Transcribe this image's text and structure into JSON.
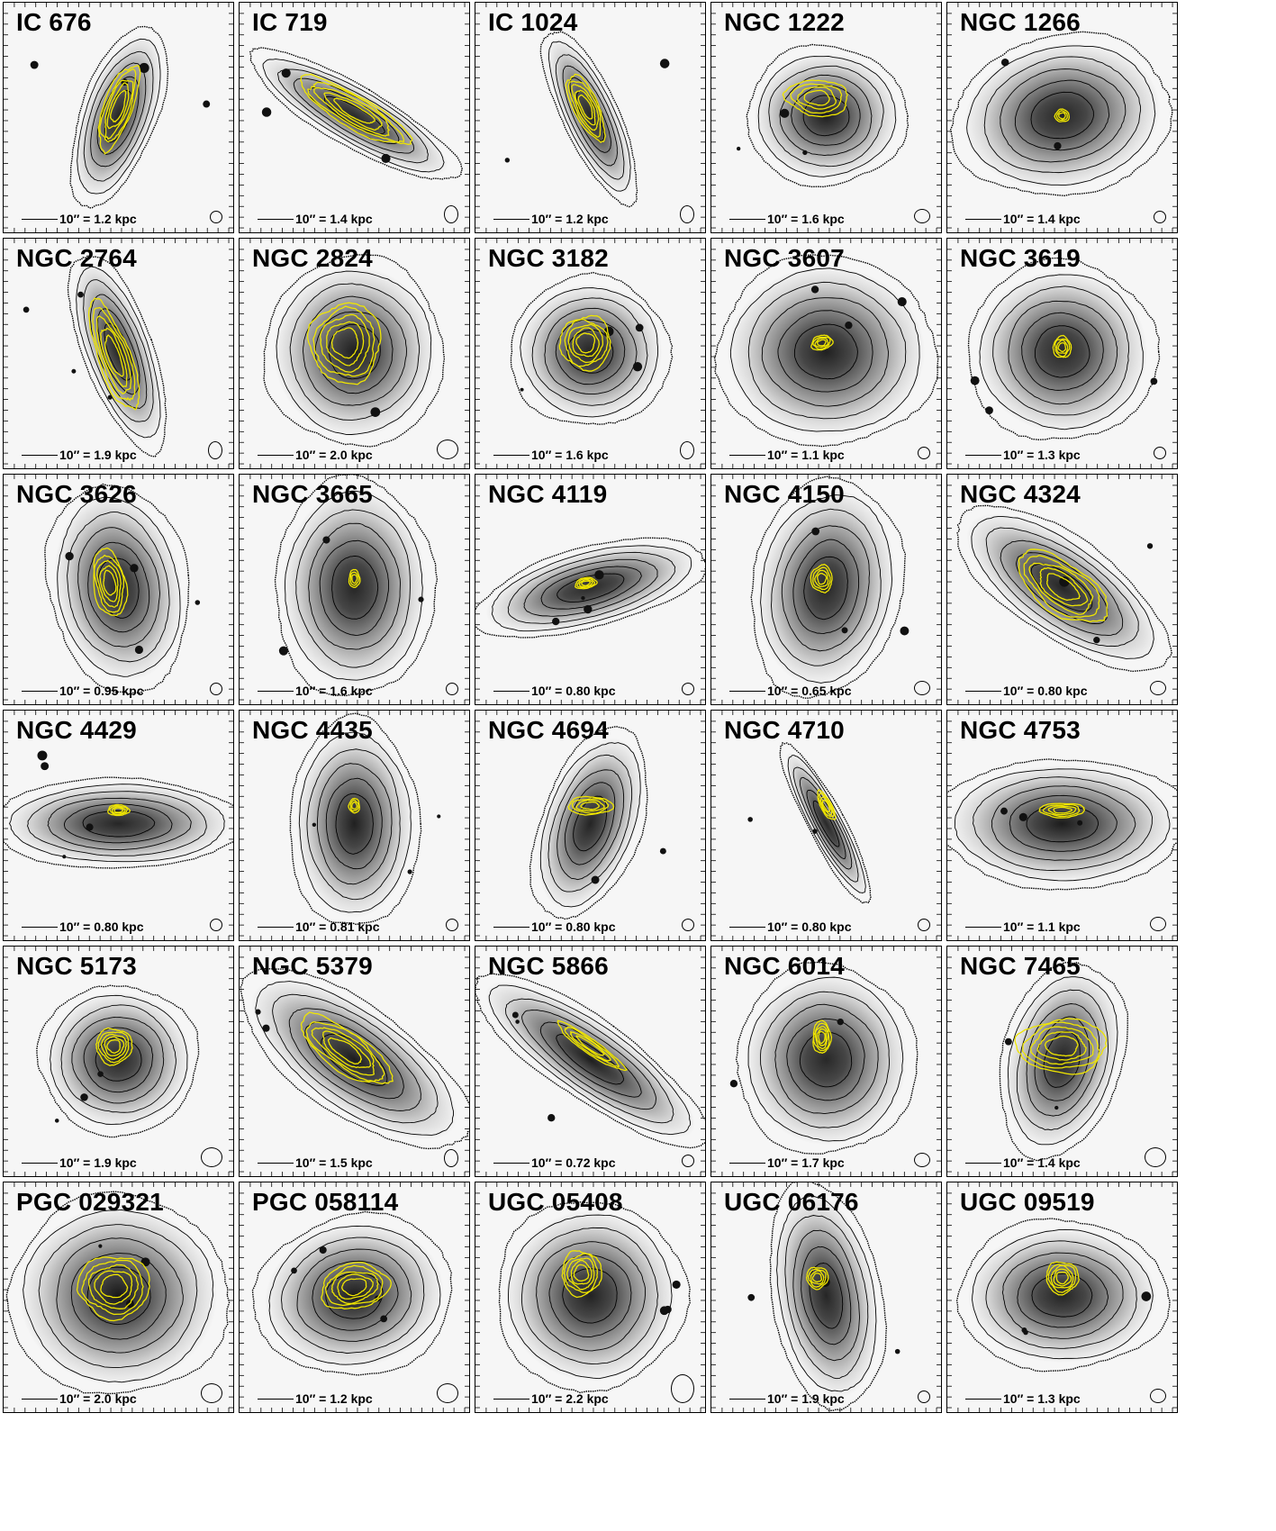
{
  "panels": [
    {
      "name": "IC 676",
      "scale": "10″ = 1.2 kpc",
      "galaxy": {
        "rx": 38,
        "ry": 95,
        "angle": 20,
        "dens": 0.55
      },
      "gas": {
        "rx": 16,
        "ry": 50,
        "angle": 20,
        "dx": 0,
        "dy": -10,
        "n": 5
      },
      "beam": "small"
    },
    {
      "name": "IC 719",
      "scale": "10″ = 1.4 kpc",
      "galaxy": {
        "rx": 30,
        "ry": 120,
        "angle": -60,
        "dens": 0.45
      },
      "gas": {
        "rx": 18,
        "ry": 70,
        "angle": -60,
        "dx": 0,
        "dy": -5,
        "n": 5
      },
      "beam": "tall"
    },
    {
      "name": "IC 1024",
      "scale": "10″ = 1.2 kpc",
      "galaxy": {
        "rx": 28,
        "ry": 95,
        "angle": -25,
        "dens": 0.55
      },
      "gas": {
        "rx": 14,
        "ry": 40,
        "angle": -25,
        "dx": -5,
        "dy": -10,
        "n": 5
      },
      "beam": "tall"
    },
    {
      "name": "NGC 1222",
      "scale": "10″ = 1.6 kpc",
      "galaxy": {
        "rx": 80,
        "ry": 70,
        "angle": 0,
        "dens": 0.8
      },
      "gas": {
        "rx": 35,
        "ry": 20,
        "angle": 5,
        "dx": -10,
        "dy": -20,
        "n": 4
      },
      "beam": "med"
    },
    {
      "name": "NGC 1266",
      "scale": "10″ = 1.4 kpc",
      "galaxy": {
        "rx": 110,
        "ry": 80,
        "angle": -10,
        "dens": 0.55
      },
      "gas": {
        "rx": 8,
        "ry": 7,
        "angle": 0,
        "dx": 0,
        "dy": 0,
        "n": 3
      },
      "beam": "small"
    },
    {
      "name": "NGC 2764",
      "scale": "10″ = 1.9 kpc",
      "galaxy": {
        "rx": 35,
        "ry": 105,
        "angle": -20,
        "dens": 0.6
      },
      "gas": {
        "rx": 18,
        "ry": 65,
        "angle": -20,
        "dx": -5,
        "dy": 5,
        "n": 5
      },
      "beam": "tall"
    },
    {
      "name": "NGC 2824",
      "scale": "10″ = 2.0 kpc",
      "galaxy": {
        "rx": 90,
        "ry": 95,
        "angle": 0,
        "dens": 0.75
      },
      "gas": {
        "rx": 40,
        "ry": 45,
        "angle": 0,
        "dx": -10,
        "dy": -10,
        "n": 5
      },
      "beam": "big"
    },
    {
      "name": "NGC 3182",
      "scale": "10″ = 1.6 kpc",
      "galaxy": {
        "rx": 80,
        "ry": 75,
        "angle": 0,
        "dens": 0.6
      },
      "gas": {
        "rx": 28,
        "ry": 30,
        "angle": 0,
        "dx": -5,
        "dy": -10,
        "n": 5
      },
      "beam": "tall"
    },
    {
      "name": "NGC 3607",
      "scale": "10″ = 1.1 kpc",
      "galaxy": {
        "rx": 110,
        "ry": 95,
        "angle": 0,
        "dens": 0.7
      },
      "gas": {
        "rx": 12,
        "ry": 8,
        "angle": -15,
        "dx": -5,
        "dy": -10,
        "n": 4
      },
      "beam": "small"
    },
    {
      "name": "NGC 3619",
      "scale": "10″ = 1.3 kpc",
      "galaxy": {
        "rx": 95,
        "ry": 90,
        "angle": 0,
        "dens": 0.5
      },
      "gas": {
        "rx": 10,
        "ry": 12,
        "angle": 0,
        "dx": 0,
        "dy": -5,
        "n": 4
      },
      "beam": "small"
    },
    {
      "name": "NGC 3626",
      "scale": "10″ = 0.95 kpc",
      "galaxy": {
        "rx": 70,
        "ry": 105,
        "angle": -10,
        "dens": 0.55
      },
      "gas": {
        "rx": 18,
        "ry": 38,
        "angle": -10,
        "dx": -10,
        "dy": -5,
        "n": 5
      },
      "beam": "small"
    },
    {
      "name": "NGC 3665",
      "scale": "10″ = 1.6 kpc",
      "galaxy": {
        "rx": 80,
        "ry": 110,
        "angle": 0,
        "dens": 0.55
      },
      "gas": {
        "rx": 6,
        "ry": 10,
        "angle": 0,
        "dx": 0,
        "dy": -10,
        "n": 3
      },
      "beam": "small"
    },
    {
      "name": "NGC 4119",
      "scale": "10″ = 0.80 kpc",
      "galaxy": {
        "rx": 120,
        "ry": 40,
        "angle": -15,
        "dens": 0.45
      },
      "gas": {
        "rx": 12,
        "ry": 6,
        "angle": -10,
        "dx": -5,
        "dy": -5,
        "n": 4
      },
      "beam": "small"
    },
    {
      "name": "NGC 4150",
      "scale": "10″ = 0.65 kpc",
      "galaxy": {
        "rx": 75,
        "ry": 110,
        "angle": 10,
        "dens": 0.55
      },
      "gas": {
        "rx": 12,
        "ry": 15,
        "angle": 0,
        "dx": -5,
        "dy": -10,
        "n": 4
      },
      "beam": "med"
    },
    {
      "name": "NGC 4324",
      "scale": "10″ = 0.80 kpc",
      "galaxy": {
        "rx": 50,
        "ry": 125,
        "angle": -55,
        "dens": 0.55
      },
      "gas": {
        "rx": 28,
        "ry": 58,
        "angle": -55,
        "dx": 0,
        "dy": 0,
        "n": 5
      },
      "beam": "med"
    },
    {
      "name": "NGC 4429",
      "scale": "10″ = 0.80 kpc",
      "galaxy": {
        "rx": 125,
        "ry": 45,
        "angle": 0,
        "dens": 0.55
      },
      "gas": {
        "rx": 12,
        "ry": 6,
        "angle": 0,
        "dx": 0,
        "dy": -15,
        "n": 4
      },
      "beam": "small"
    },
    {
      "name": "NGC 4435",
      "scale": "10″ = 0.81 kpc",
      "galaxy": {
        "rx": 65,
        "ry": 105,
        "angle": 0,
        "dens": 0.7
      },
      "gas": {
        "rx": 6,
        "ry": 8,
        "angle": 0,
        "dx": 0,
        "dy": -20,
        "n": 3
      },
      "beam": "small"
    },
    {
      "name": "NGC 4694",
      "scale": "10″ = 0.80 kpc",
      "galaxy": {
        "rx": 50,
        "ry": 100,
        "angle": 20,
        "dens": 0.6
      },
      "gas": {
        "rx": 25,
        "ry": 10,
        "angle": 0,
        "dx": 0,
        "dy": -20,
        "n": 4
      },
      "beam": "small"
    },
    {
      "name": "NGC 4710",
      "scale": "10″ = 0.80 kpc",
      "galaxy": {
        "rx": 18,
        "ry": 90,
        "angle": -28,
        "dens": 0.5
      },
      "gas": {
        "rx": 6,
        "ry": 18,
        "angle": -28,
        "dx": 0,
        "dy": -20,
        "n": 4
      },
      "beam": "small"
    },
    {
      "name": "NGC 4753",
      "scale": "10″ = 1.1 kpc",
      "galaxy": {
        "rx": 125,
        "ry": 65,
        "angle": 0,
        "dens": 0.8
      },
      "gas": {
        "rx": 25,
        "ry": 8,
        "angle": 0,
        "dx": 0,
        "dy": -15,
        "n": 4
      },
      "beam": "med"
    },
    {
      "name": "NGC 5173",
      "scale": "10″ = 1.9 kpc",
      "galaxy": {
        "rx": 80,
        "ry": 75,
        "angle": 0,
        "dens": 0.55
      },
      "gas": {
        "rx": 20,
        "ry": 20,
        "angle": 0,
        "dx": -5,
        "dy": -15,
        "n": 5
      },
      "beam": "big"
    },
    {
      "name": "NGC 5379",
      "scale": "10″ = 1.5 kpc",
      "galaxy": {
        "rx": 55,
        "ry": 135,
        "angle": -55,
        "dens": 0.8
      },
      "gas": {
        "rx": 22,
        "ry": 60,
        "angle": -55,
        "dx": -10,
        "dy": -10,
        "n": 5
      },
      "beam": "tall"
    },
    {
      "name": "NGC 5866",
      "scale": "10″ = 0.72 kpc",
      "galaxy": {
        "rx": 40,
        "ry": 140,
        "angle": -55,
        "dens": 0.75
      },
      "gas": {
        "rx": 8,
        "ry": 45,
        "angle": -55,
        "dx": 0,
        "dy": -15,
        "n": 4
      },
      "beam": "small"
    },
    {
      "name": "NGC 6014",
      "scale": "10″ = 1.7 kpc",
      "galaxy": {
        "rx": 90,
        "ry": 95,
        "angle": 0,
        "dens": 0.5
      },
      "gas": {
        "rx": 10,
        "ry": 18,
        "angle": 0,
        "dx": -5,
        "dy": -25,
        "n": 5
      },
      "beam": "med"
    },
    {
      "name": "NGC 7465",
      "scale": "10″ = 1.4 kpc",
      "galaxy": {
        "rx": 60,
        "ry": 100,
        "angle": 15,
        "dens": 0.6
      },
      "gas": {
        "rx": 50,
        "ry": 30,
        "angle": 0,
        "dx": 0,
        "dy": -15,
        "n": 5
      },
      "beam": "big"
    },
    {
      "name": "PGC 029321",
      "scale": "10″ = 2.0 kpc",
      "galaxy": {
        "rx": 110,
        "ry": 100,
        "angle": 0,
        "dens": 0.9
      },
      "gas": {
        "rx": 40,
        "ry": 35,
        "angle": 0,
        "dx": -5,
        "dy": -10,
        "n": 5
      },
      "beam": "big"
    },
    {
      "name": "PGC 058114",
      "scale": "10″ = 1.2 kpc",
      "galaxy": {
        "rx": 100,
        "ry": 80,
        "angle": -10,
        "dens": 0.8
      },
      "gas": {
        "rx": 38,
        "ry": 25,
        "angle": -10,
        "dx": 0,
        "dy": -10,
        "n": 5
      },
      "beam": "big"
    },
    {
      "name": "UGC 05408",
      "scale": "10″ = 2.2 kpc",
      "galaxy": {
        "rx": 95,
        "ry": 95,
        "angle": 0,
        "dens": 0.65
      },
      "gas": {
        "rx": 22,
        "ry": 25,
        "angle": 0,
        "dx": -10,
        "dy": -25,
        "n": 5
      },
      "beam": "huge"
    },
    {
      "name": "UGC 06176",
      "scale": "10″ = 1.9 kpc",
      "galaxy": {
        "rx": 55,
        "ry": 115,
        "angle": -10,
        "dens": 0.55
      },
      "gas": {
        "rx": 12,
        "ry": 12,
        "angle": 0,
        "dx": -10,
        "dy": -20,
        "n": 4
      },
      "beam": "small"
    },
    {
      "name": "UGC 09519",
      "scale": "10″ = 1.3 kpc",
      "galaxy": {
        "rx": 105,
        "ry": 75,
        "angle": 0,
        "dens": 0.6
      },
      "gas": {
        "rx": 18,
        "ry": 18,
        "angle": 0,
        "dx": 0,
        "dy": -20,
        "n": 5
      },
      "beam": "med"
    }
  ],
  "colors": {
    "gas_contour": "#f0e600",
    "stellar_contour": "#000000",
    "background": "#ffffff"
  }
}
